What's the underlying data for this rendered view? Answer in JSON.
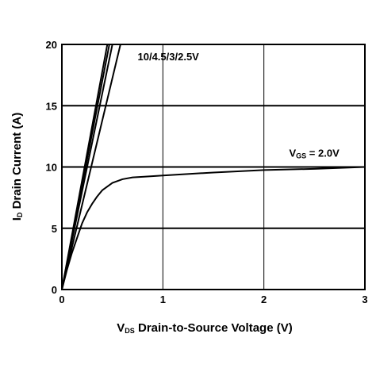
{
  "chart_data": {
    "type": "line",
    "title": "",
    "xlabel": {
      "main": "V",
      "sub": "DS",
      "rest": " Drain-to-Source Voltage (V)"
    },
    "ylabel": {
      "main": "I",
      "sub": "D",
      "rest": " Drain Current (A)"
    },
    "xlim": [
      0,
      3
    ],
    "ylim": [
      0,
      20
    ],
    "xticks": [
      "0",
      "1",
      "2",
      "3"
    ],
    "yticks": [
      "0",
      "5",
      "10",
      "15",
      "20"
    ],
    "xtick_values": [
      0,
      1,
      2,
      3
    ],
    "ytick_values": [
      0,
      5,
      10,
      15,
      20
    ],
    "grid": true,
    "series": [
      {
        "id": "vgs10",
        "x": [
          0,
          0.45
        ],
        "y": [
          0,
          20
        ]
      },
      {
        "id": "vgs4_5",
        "x": [
          0,
          0.47
        ],
        "y": [
          0,
          20
        ]
      },
      {
        "id": "vgs3",
        "x": [
          0,
          0.5
        ],
        "y": [
          0,
          20
        ]
      },
      {
        "id": "vgs2_5",
        "x": [
          0,
          0.58
        ],
        "y": [
          0,
          20
        ]
      },
      {
        "id": "vgs2",
        "x": [
          0,
          0.05,
          0.1,
          0.15,
          0.2,
          0.25,
          0.3,
          0.35,
          0.4,
          0.5,
          0.6,
          0.7,
          0.8,
          1.0,
          1.5,
          2.0,
          2.5,
          3.0
        ],
        "y": [
          0,
          1.6,
          3.0,
          4.2,
          5.4,
          6.3,
          7.0,
          7.6,
          8.1,
          8.7,
          9.0,
          9.15,
          9.2,
          9.3,
          9.55,
          9.75,
          9.85,
          10.0
        ]
      }
    ],
    "annotations": [
      {
        "id": "group-label",
        "text": "10/4.5/3/2.5V",
        "x": 0.75,
        "y": 18.7
      },
      {
        "id": "vgs2-label",
        "main": "V",
        "sub": "GS",
        "rest": " = 2.0V",
        "x": 2.25,
        "y": 10.85
      }
    ]
  }
}
